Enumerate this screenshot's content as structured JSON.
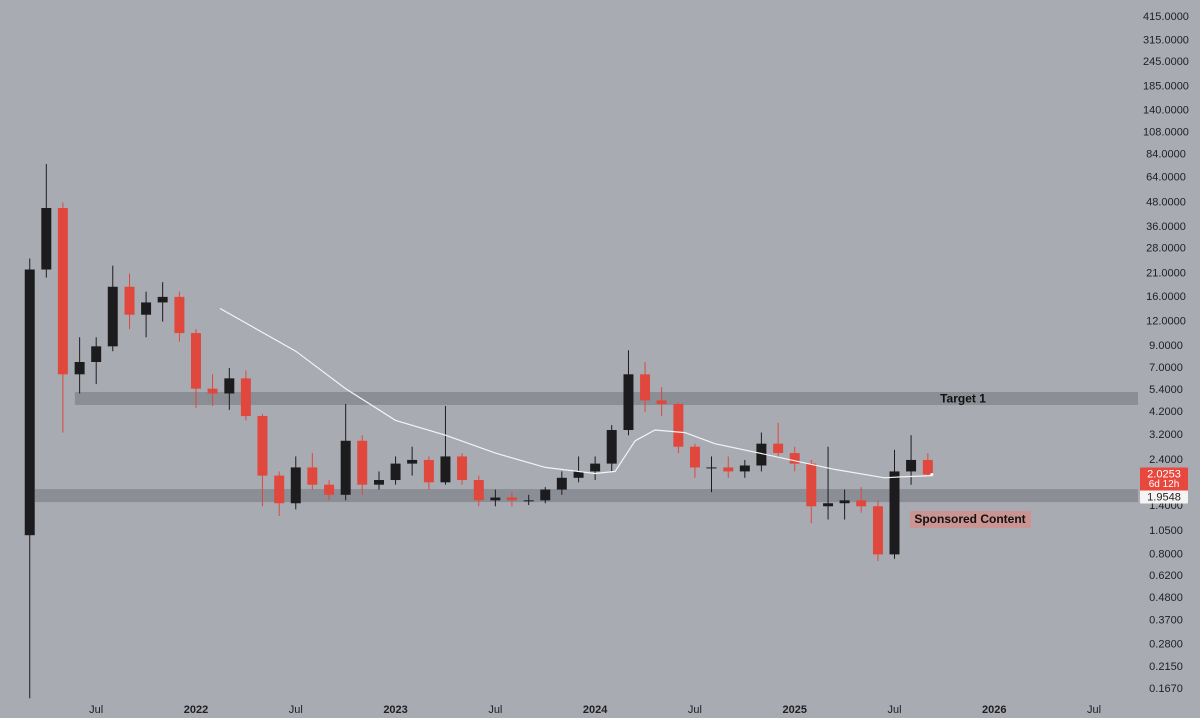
{
  "chart_data": {
    "type": "candlestick",
    "log_scale": true,
    "up_color": "#1c1c1e",
    "down_color": "#e0473d",
    "x": [
      2021.167,
      2021.25,
      2021.333,
      2021.417,
      2021.5,
      2021.583,
      2021.667,
      2021.75,
      2021.833,
      2021.917,
      2022.0,
      2022.083,
      2022.167,
      2022.25,
      2022.333,
      2022.417,
      2022.5,
      2022.583,
      2022.667,
      2022.75,
      2022.833,
      2022.917,
      2023.0,
      2023.083,
      2023.167,
      2023.25,
      2023.333,
      2023.417,
      2023.5,
      2023.583,
      2023.667,
      2023.75,
      2023.833,
      2023.917,
      2024.0,
      2024.083,
      2024.167,
      2024.25,
      2024.333,
      2024.417,
      2024.5,
      2024.583,
      2024.667,
      2024.75,
      2024.833,
      2024.917,
      2025.0,
      2025.083,
      2025.167,
      2025.25,
      2025.333,
      2025.417,
      2025.5,
      2025.583,
      2025.667
    ],
    "open": [
      1.0,
      22,
      45,
      6.5,
      7.5,
      9,
      18,
      13,
      15,
      16,
      10.5,
      5.5,
      5.2,
      6.2,
      4,
      2.0,
      1.45,
      2.2,
      1.8,
      1.6,
      3.0,
      1.8,
      1.9,
      2.3,
      2.4,
      1.85,
      2.5,
      1.9,
      1.5,
      1.55,
      1.5,
      1.5,
      1.7,
      1.95,
      2.1,
      2.3,
      3.4,
      6.5,
      4.8,
      4.6,
      2.8,
      2.2,
      2.2,
      2.1,
      2.25,
      2.9,
      2.6,
      2.3,
      1.4,
      1.45,
      1.5,
      1.4,
      0.8,
      2.1,
      2.4
    ],
    "high": [
      25,
      75,
      48,
      10,
      10,
      23,
      21,
      17,
      19,
      17,
      11,
      6.5,
      7,
      6.8,
      4.1,
      2.1,
      2.5,
      2.6,
      1.9,
      4.6,
      3.2,
      2.1,
      2.5,
      2.8,
      2.5,
      4.5,
      2.6,
      2.0,
      1.7,
      1.65,
      1.6,
      1.75,
      2.1,
      2.5,
      2.5,
      3.6,
      8.6,
      7.5,
      5.6,
      4.7,
      2.9,
      2.5,
      2.5,
      2.4,
      3.3,
      3.7,
      2.8,
      2.4,
      2.8,
      1.7,
      1.75,
      1.5,
      2.7,
      3.2,
      2.6
    ],
    "low": [
      0.15,
      20,
      3.3,
      5.2,
      5.8,
      8.5,
      11,
      10,
      12,
      9.5,
      4.4,
      4.5,
      4.3,
      3.8,
      1.4,
      1.25,
      1.35,
      1.7,
      1.5,
      1.5,
      1.6,
      1.7,
      1.8,
      2.0,
      1.7,
      1.8,
      1.8,
      1.4,
      1.4,
      1.4,
      1.42,
      1.45,
      1.6,
      1.85,
      1.9,
      2.1,
      3.2,
      4.2,
      4.0,
      2.6,
      1.95,
      1.65,
      1.95,
      1.95,
      2.1,
      2.5,
      2.1,
      1.15,
      1.2,
      1.2,
      1.3,
      0.74,
      0.76,
      1.8,
      2.0
    ],
    "close": [
      22,
      45,
      6.5,
      7.5,
      9,
      18,
      13,
      15,
      16,
      10.5,
      5.5,
      5.2,
      6.2,
      4.0,
      2.0,
      1.45,
      2.2,
      1.8,
      1.6,
      3.0,
      1.8,
      1.9,
      2.3,
      2.4,
      1.85,
      2.5,
      1.9,
      1.5,
      1.55,
      1.5,
      1.5,
      1.7,
      1.95,
      2.1,
      2.3,
      3.4,
      6.5,
      4.8,
      4.6,
      2.8,
      2.2,
      2.2,
      2.1,
      2.25,
      2.9,
      2.6,
      2.3,
      1.4,
      1.45,
      1.5,
      1.4,
      0.8,
      2.1,
      2.4,
      2.0253
    ],
    "moving_average": {
      "color": "#f4f4f4",
      "x": [
        2022.12,
        2022.5,
        2022.75,
        2023.0,
        2023.25,
        2023.5,
        2023.75,
        2024.0,
        2024.1,
        2024.2,
        2024.3,
        2024.45,
        2024.6,
        2024.9,
        2025.2,
        2025.45,
        2025.53,
        2025.69
      ],
      "values": [
        14,
        8.5,
        5.5,
        3.8,
        3.2,
        2.6,
        2.2,
        2.05,
        2.1,
        3.0,
        3.4,
        3.3,
        2.9,
        2.5,
        2.15,
        1.95,
        1.97,
        2.0
      ]
    },
    "zones": [
      {
        "label": "Target 1",
        "low": 4.55,
        "high": 5.29,
        "x_start": 2021.393,
        "color": "#8c8e95"
      },
      {
        "low": 1.47,
        "high": 1.71,
        "x_start": 2021.193,
        "color": "#8c8e95"
      }
    ],
    "annotation": "Sponsored Content",
    "last_price": 2.0253,
    "countdown": "6d 12h",
    "ma_price": 1.9548,
    "xlim": [
      2021.018,
      2026.72
    ],
    "xticks": [
      {
        "value": 2021.5,
        "label": "Jul"
      },
      2022,
      {
        "value": 2022.5,
        "label": "Jul"
      },
      2023,
      {
        "value": 2023.5,
        "label": "Jul"
      },
      2024,
      {
        "value": 2024.5,
        "label": "Jul"
      },
      2025,
      {
        "value": 2025.5,
        "label": "Jul"
      },
      2026,
      {
        "value": 2026.5,
        "label": "Jul"
      }
    ],
    "ylim": [
      0.147,
      506
    ],
    "yticks": [
      {
        "value": 415,
        "label": "415.0000"
      },
      {
        "value": 315,
        "label": "315.0000"
      },
      {
        "value": 245,
        "label": "245.0000"
      },
      {
        "value": 185,
        "label": "185.0000"
      },
      {
        "value": 140,
        "label": "140.0000"
      },
      {
        "value": 108,
        "label": "108.0000"
      },
      {
        "value": 84,
        "label": "84.0000"
      },
      {
        "value": 64,
        "label": "64.0000"
      },
      {
        "value": 48,
        "label": "48.0000"
      },
      {
        "value": 36,
        "label": "36.0000"
      },
      {
        "value": 28,
        "label": "28.0000"
      },
      {
        "value": 21,
        "label": "21.0000"
      },
      {
        "value": 16,
        "label": "16.0000"
      },
      {
        "value": 12,
        "label": "12.0000"
      },
      {
        "value": 9,
        "label": "9.0000"
      },
      {
        "value": 7,
        "label": "7.0000"
      },
      {
        "value": 5.4,
        "label": "5.4000"
      },
      {
        "value": 4.2,
        "label": "4.2000"
      },
      {
        "value": 3.2,
        "label": "3.2000"
      },
      {
        "value": 2.4,
        "label": "2.4000"
      },
      {
        "value": 1.4,
        "label": "1.4000"
      },
      {
        "value": 1.05,
        "label": "1.0500"
      },
      {
        "value": 0.8,
        "label": "0.8000"
      },
      {
        "value": 0.62,
        "label": "0.6200"
      },
      {
        "value": 0.48,
        "label": "0.4800"
      },
      {
        "value": 0.37,
        "label": "0.3700"
      },
      {
        "value": 0.28,
        "label": "0.2800"
      },
      {
        "value": 0.215,
        "label": "0.2150"
      },
      {
        "value": 0.167,
        "label": "0.1670"
      }
    ]
  }
}
